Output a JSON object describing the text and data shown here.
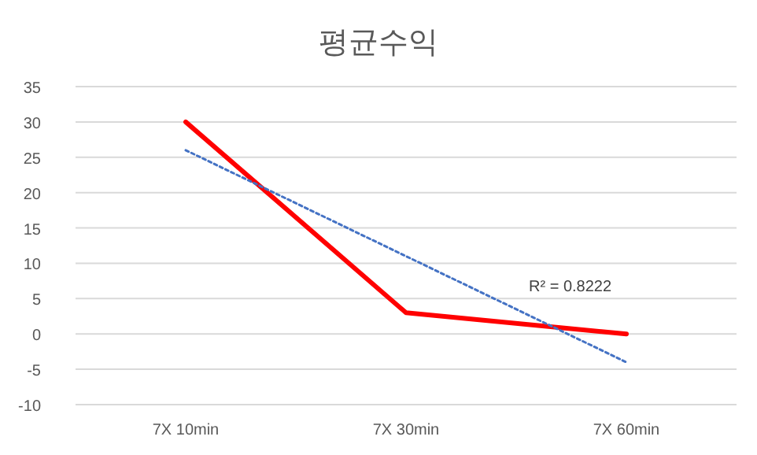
{
  "chart_data": {
    "type": "line",
    "title": "평균수익",
    "categories": [
      "7X 10min",
      "7X 30min",
      "7X 60min"
    ],
    "series": [
      {
        "color": "#ff0000",
        "values": [
          30,
          3,
          0
        ],
        "line_style": "solid"
      },
      {
        "color": "#4472c4",
        "values": [
          26,
          11,
          -4
        ],
        "line_style": "dotted"
      }
    ],
    "ylim": [
      -10,
      35
    ],
    "yticks": [
      -10,
      -5,
      0,
      5,
      10,
      15,
      20,
      25,
      30,
      35
    ],
    "grid": "y",
    "marker": "none",
    "annotations": [
      "R² = 0.8222"
    ]
  }
}
